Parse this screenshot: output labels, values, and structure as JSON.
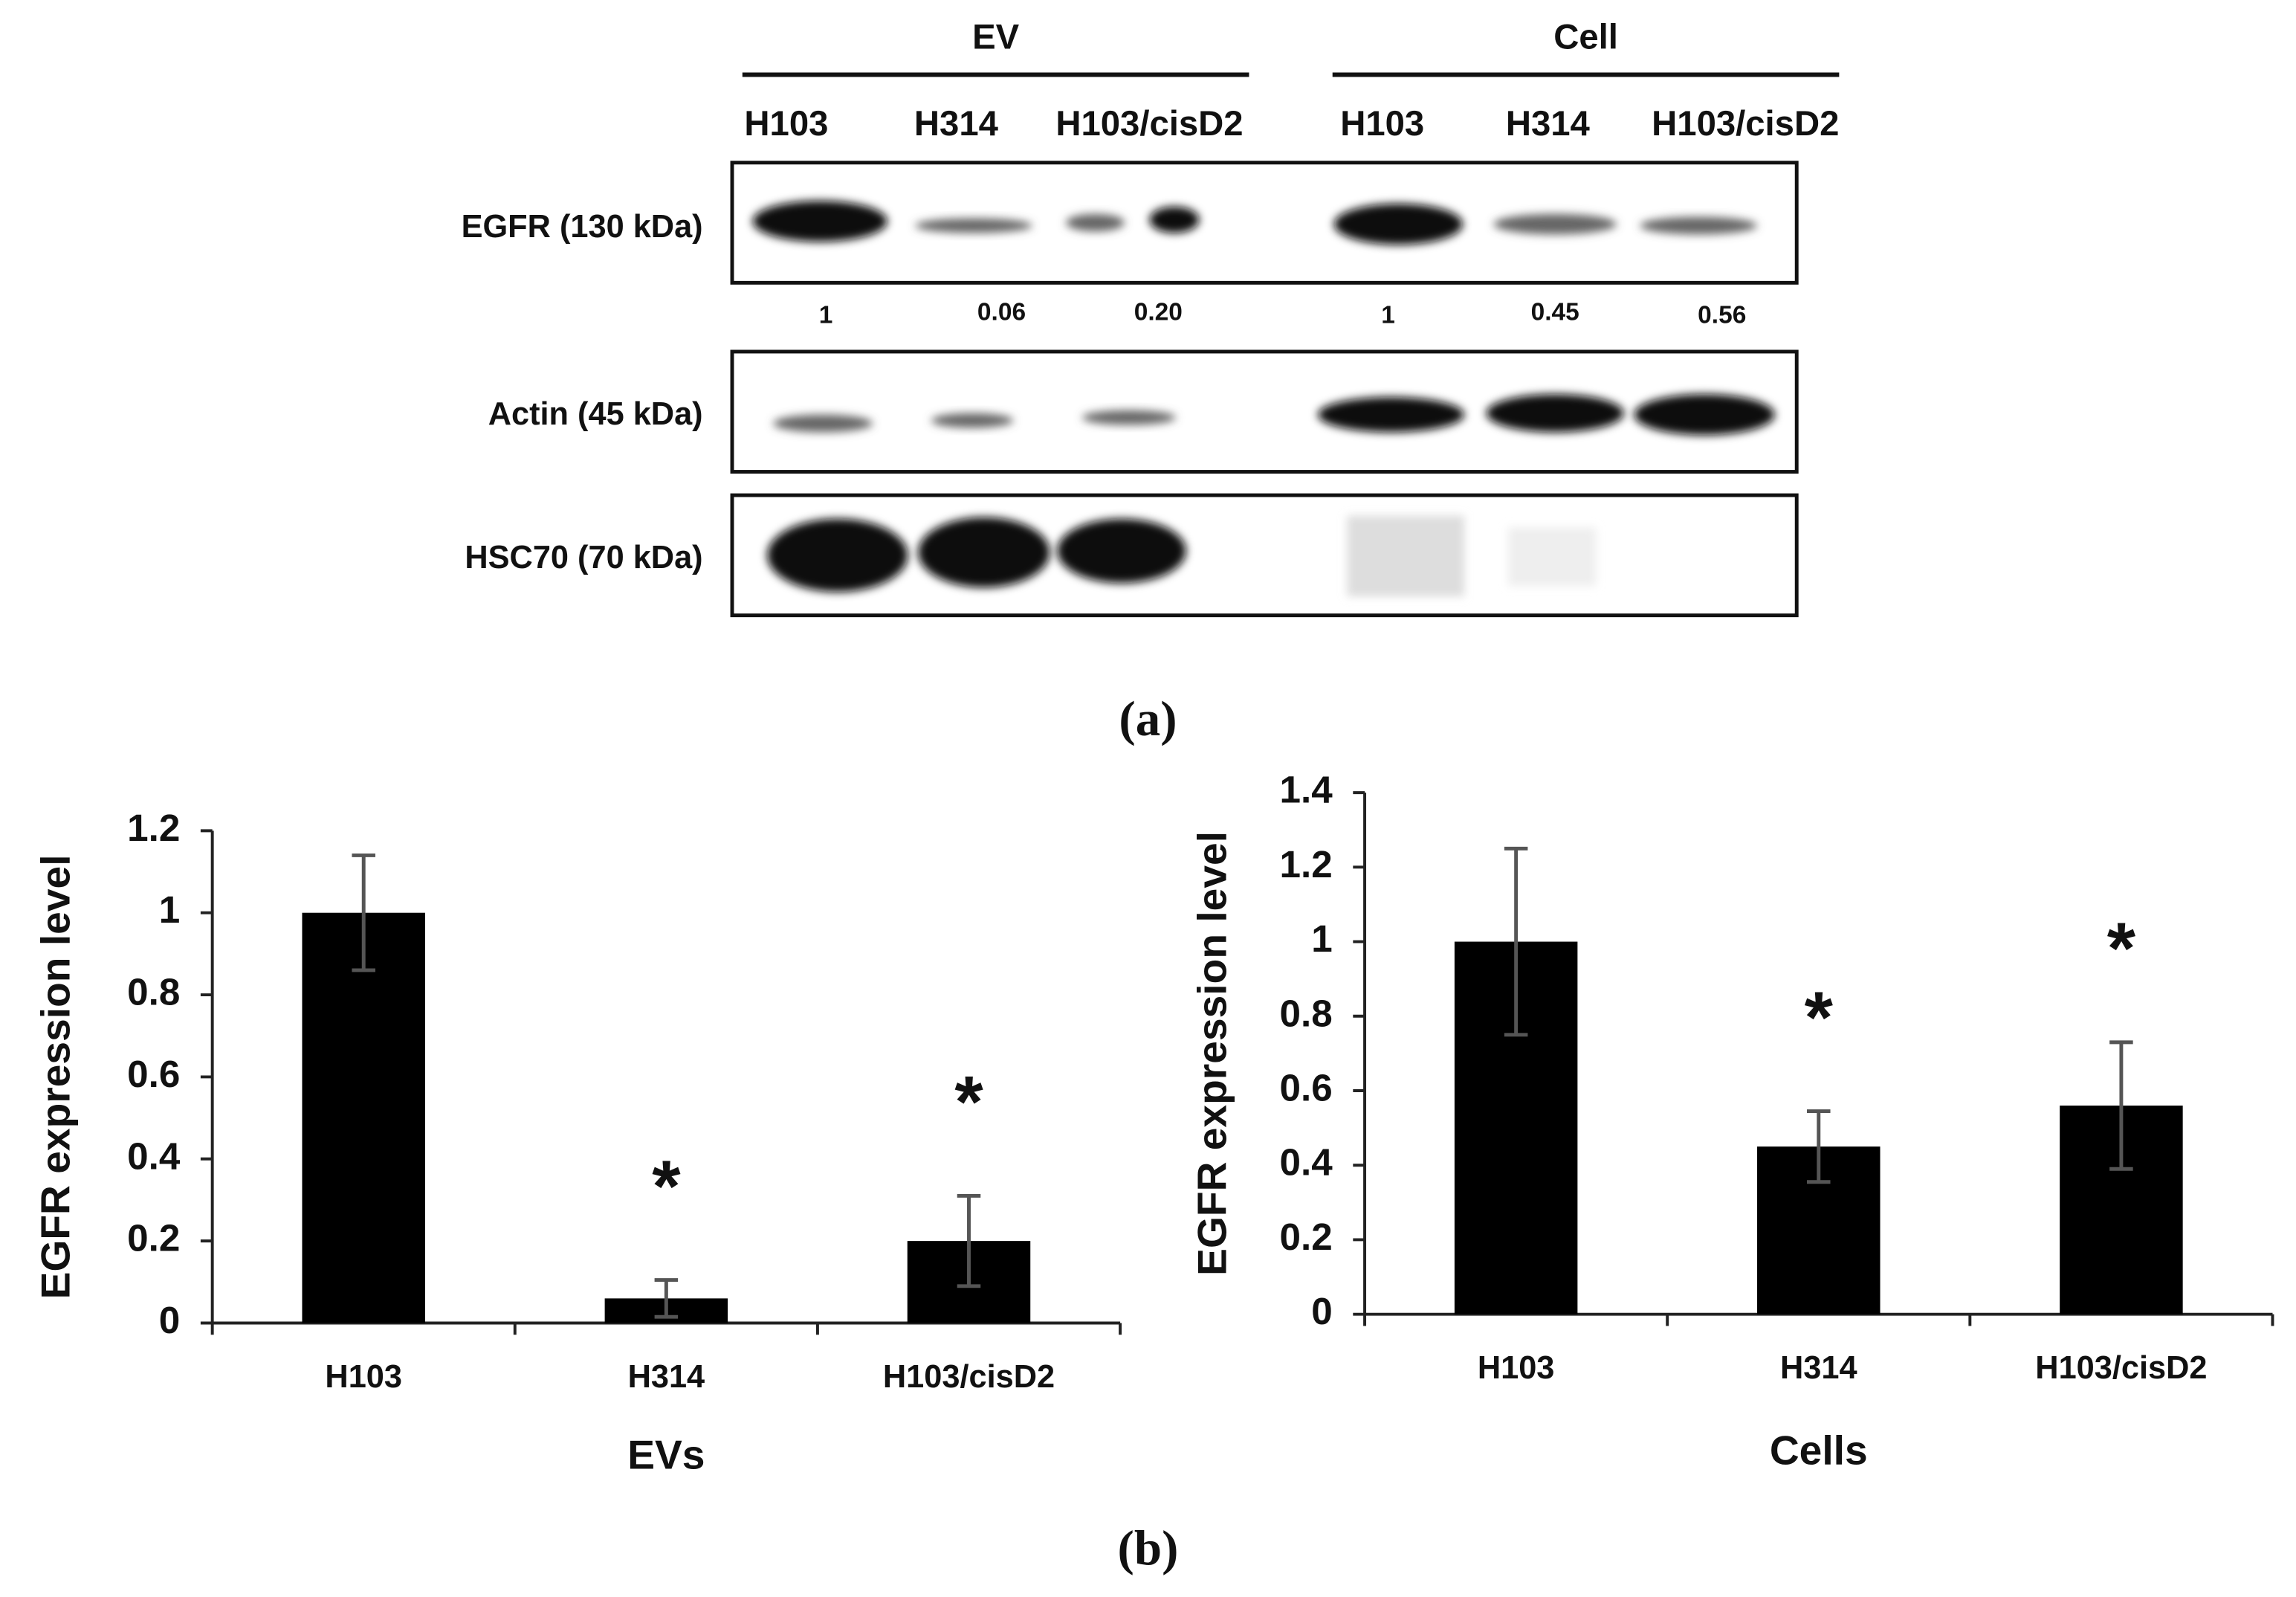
{
  "blot": {
    "groups": [
      {
        "label": "EV",
        "lanes": [
          "H103",
          "H314",
          "H103/cisD2"
        ]
      },
      {
        "label": "Cell",
        "lanes": [
          "H103",
          "H314",
          "H103/cisD2"
        ]
      }
    ],
    "rows": [
      {
        "label": "EGFR (130 kDa)",
        "quantification": [
          "1",
          "0.06",
          "0.20",
          "1",
          "0.45",
          "0.56"
        ]
      },
      {
        "label": "Actin (45 kDa)"
      },
      {
        "label": "HSC70 (70 kDa)"
      }
    ],
    "panel_label": "(a)"
  },
  "panel_b_label": "(b)",
  "chart_data": [
    {
      "type": "bar",
      "x_label": "EVs",
      "y_label": "EGFR expression level",
      "categories": [
        "H103",
        "H314",
        "H103/cisD2"
      ],
      "values": [
        1,
        0.06,
        0.2
      ],
      "errors": [
        0.14,
        0.045,
        0.11
      ],
      "markers": [
        null,
        "*",
        "*"
      ],
      "color": "#000000",
      "error_color": "#555555",
      "ylim": [
        0,
        1.2
      ],
      "yticks": [
        0,
        0.2,
        0.4,
        0.6,
        0.8,
        1,
        1.2
      ]
    },
    {
      "type": "bar",
      "x_label": "Cells",
      "y_label": "EGFR expression level",
      "categories": [
        "H103",
        "H314",
        "H103/cisD2"
      ],
      "values": [
        1,
        0.45,
        0.56
      ],
      "errors": [
        0.25,
        0.095,
        0.17
      ],
      "markers": [
        null,
        "*",
        "*"
      ],
      "color": "#000000",
      "error_color": "#555555",
      "ylim": [
        0,
        1.4
      ],
      "yticks": [
        0,
        0.2,
        0.4,
        0.6,
        0.8,
        1,
        1.2,
        1.4
      ]
    }
  ]
}
